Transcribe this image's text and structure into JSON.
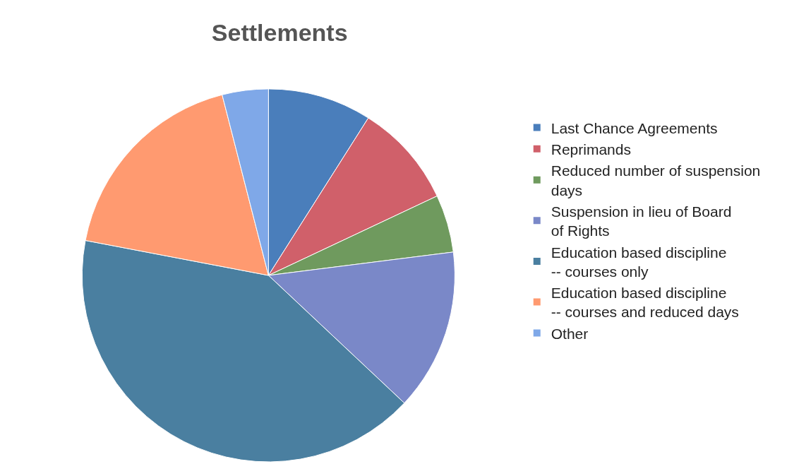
{
  "chart_data": {
    "type": "pie",
    "title": "Settlements",
    "categories": [
      "Last Chance Agreements",
      "Reprimands",
      "Reduced number of suspension days",
      "Suspension in lieu of Board of Rights",
      "Education based discipline -- courses only",
      "Education based discipline -- courses and reduced days",
      "Other"
    ],
    "values": [
      9,
      9,
      5,
      14,
      41,
      18,
      4
    ],
    "colors": [
      "#4a7ebb",
      "#d0606a",
      "#6f9a5e",
      "#7a88c8",
      "#4a7fa0",
      "#ff9a70",
      "#7fa8e8"
    ],
    "legend": "right"
  }
}
